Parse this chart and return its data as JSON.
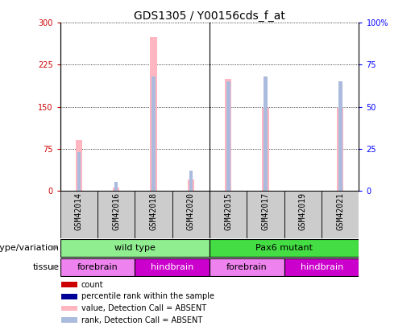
{
  "title": "GDS1305 / Y00156cds_f_at",
  "samples": [
    "GSM42014",
    "GSM42016",
    "GSM42018",
    "GSM42020",
    "GSM42015",
    "GSM42017",
    "GSM42019",
    "GSM42021"
  ],
  "absent_value": [
    90,
    5,
    275,
    20,
    200,
    148,
    0,
    148
  ],
  "absent_rank": [
    23,
    5,
    68,
    12,
    65,
    68,
    0,
    65
  ],
  "count_value": [
    0,
    0,
    0,
    0,
    0,
    0,
    0,
    0
  ],
  "percentile_rank": [
    0,
    0,
    0,
    0,
    0,
    0,
    0,
    0
  ],
  "ylim_left": [
    0,
    300
  ],
  "ylim_right": [
    0,
    100
  ],
  "yticks_left": [
    0,
    75,
    150,
    225,
    300
  ],
  "yticks_right": [
    0,
    25,
    50,
    75,
    100
  ],
  "ytick_right_labels": [
    "0",
    "25",
    "50",
    "75",
    "100%"
  ],
  "genotype_groups": [
    {
      "label": "wild type",
      "start": 0,
      "end": 4,
      "color": "#90EE90"
    },
    {
      "label": "Pax6 mutant",
      "start": 4,
      "end": 8,
      "color": "#44DD44"
    }
  ],
  "tissue_groups": [
    {
      "label": "forebrain",
      "start": 0,
      "end": 2,
      "color": "#EE82EE"
    },
    {
      "label": "hindbrain",
      "start": 2,
      "end": 4,
      "color": "#CC00CC"
    },
    {
      "label": "forebrain",
      "start": 4,
      "end": 6,
      "color": "#EE82EE"
    },
    {
      "label": "hindbrain",
      "start": 6,
      "end": 8,
      "color": "#CC00CC"
    }
  ],
  "legend_items": [
    {
      "label": "count",
      "color": "#CC0000"
    },
    {
      "label": "percentile rank within the sample",
      "color": "#000099"
    },
    {
      "label": "value, Detection Call = ABSENT",
      "color": "#FFB6C1"
    },
    {
      "label": "rank, Detection Call = ABSENT",
      "color": "#AABBDD"
    }
  ],
  "absent_bar_color": "#FFB6C1",
  "absent_rank_color": "#AABBDD",
  "count_color": "#CC0000",
  "pct_rank_color": "#000099",
  "title_fontsize": 10,
  "tick_fontsize": 7,
  "label_fontsize": 8,
  "anno_fontsize": 8
}
